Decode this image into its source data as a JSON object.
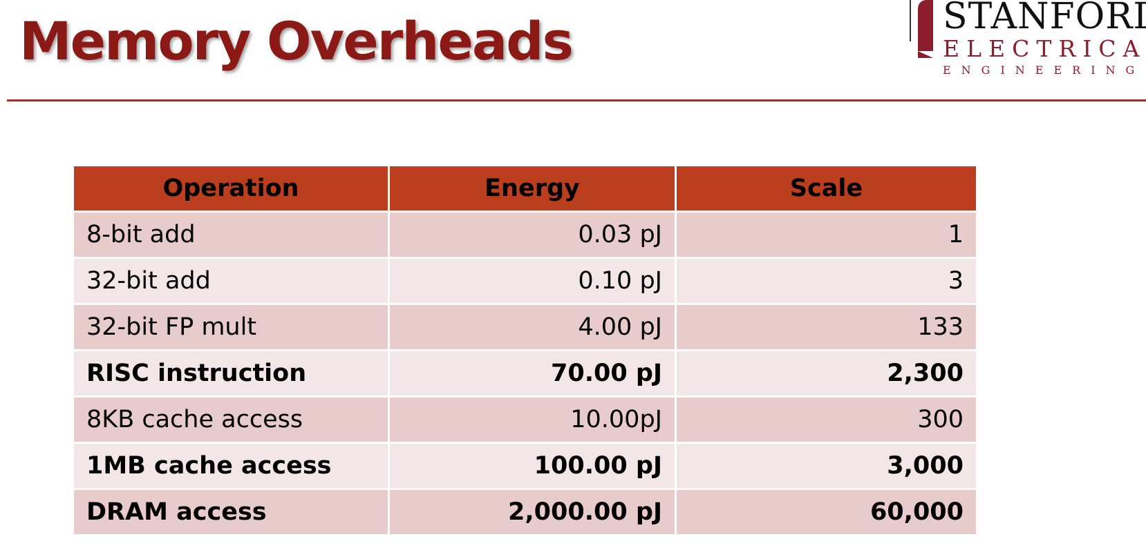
{
  "slide": {
    "title": "Memory Overheads"
  },
  "logo": {
    "line1": "STANFORD",
    "line2": "ELECTRICAL",
    "line3": "ENGINEERING"
  },
  "table": {
    "headers": [
      "Operation",
      "Energy",
      "Scale"
    ],
    "rows": [
      {
        "operation": "8-bit add",
        "energy": "0.03 pJ",
        "scale": "1",
        "bold": false
      },
      {
        "operation": "32-bit add",
        "energy": "0.10 pJ",
        "scale": "3",
        "bold": false
      },
      {
        "operation": "32-bit FP mult",
        "energy": "4.00 pJ",
        "scale": "133",
        "bold": false
      },
      {
        "operation": "RISC instruction",
        "energy": "70.00 pJ",
        "scale": "2,300",
        "bold": true
      },
      {
        "operation": "8KB cache access",
        "energy": "10.00pJ",
        "scale": "300",
        "bold": false
      },
      {
        "operation": "1MB cache access",
        "energy": "100.00 pJ",
        "scale": "3,000",
        "bold": true
      },
      {
        "operation": "DRAM access",
        "energy": "2,000.00 pJ",
        "scale": "60,000",
        "bold": true
      }
    ]
  },
  "colors": {
    "title": "#8B1A17",
    "rule": "#A0302A",
    "header_bg": "#BB3F1E",
    "row_odd_bg": "#E8CCCC",
    "row_even_bg": "#F3E6E6",
    "logo_red": "#8C1D2E"
  }
}
